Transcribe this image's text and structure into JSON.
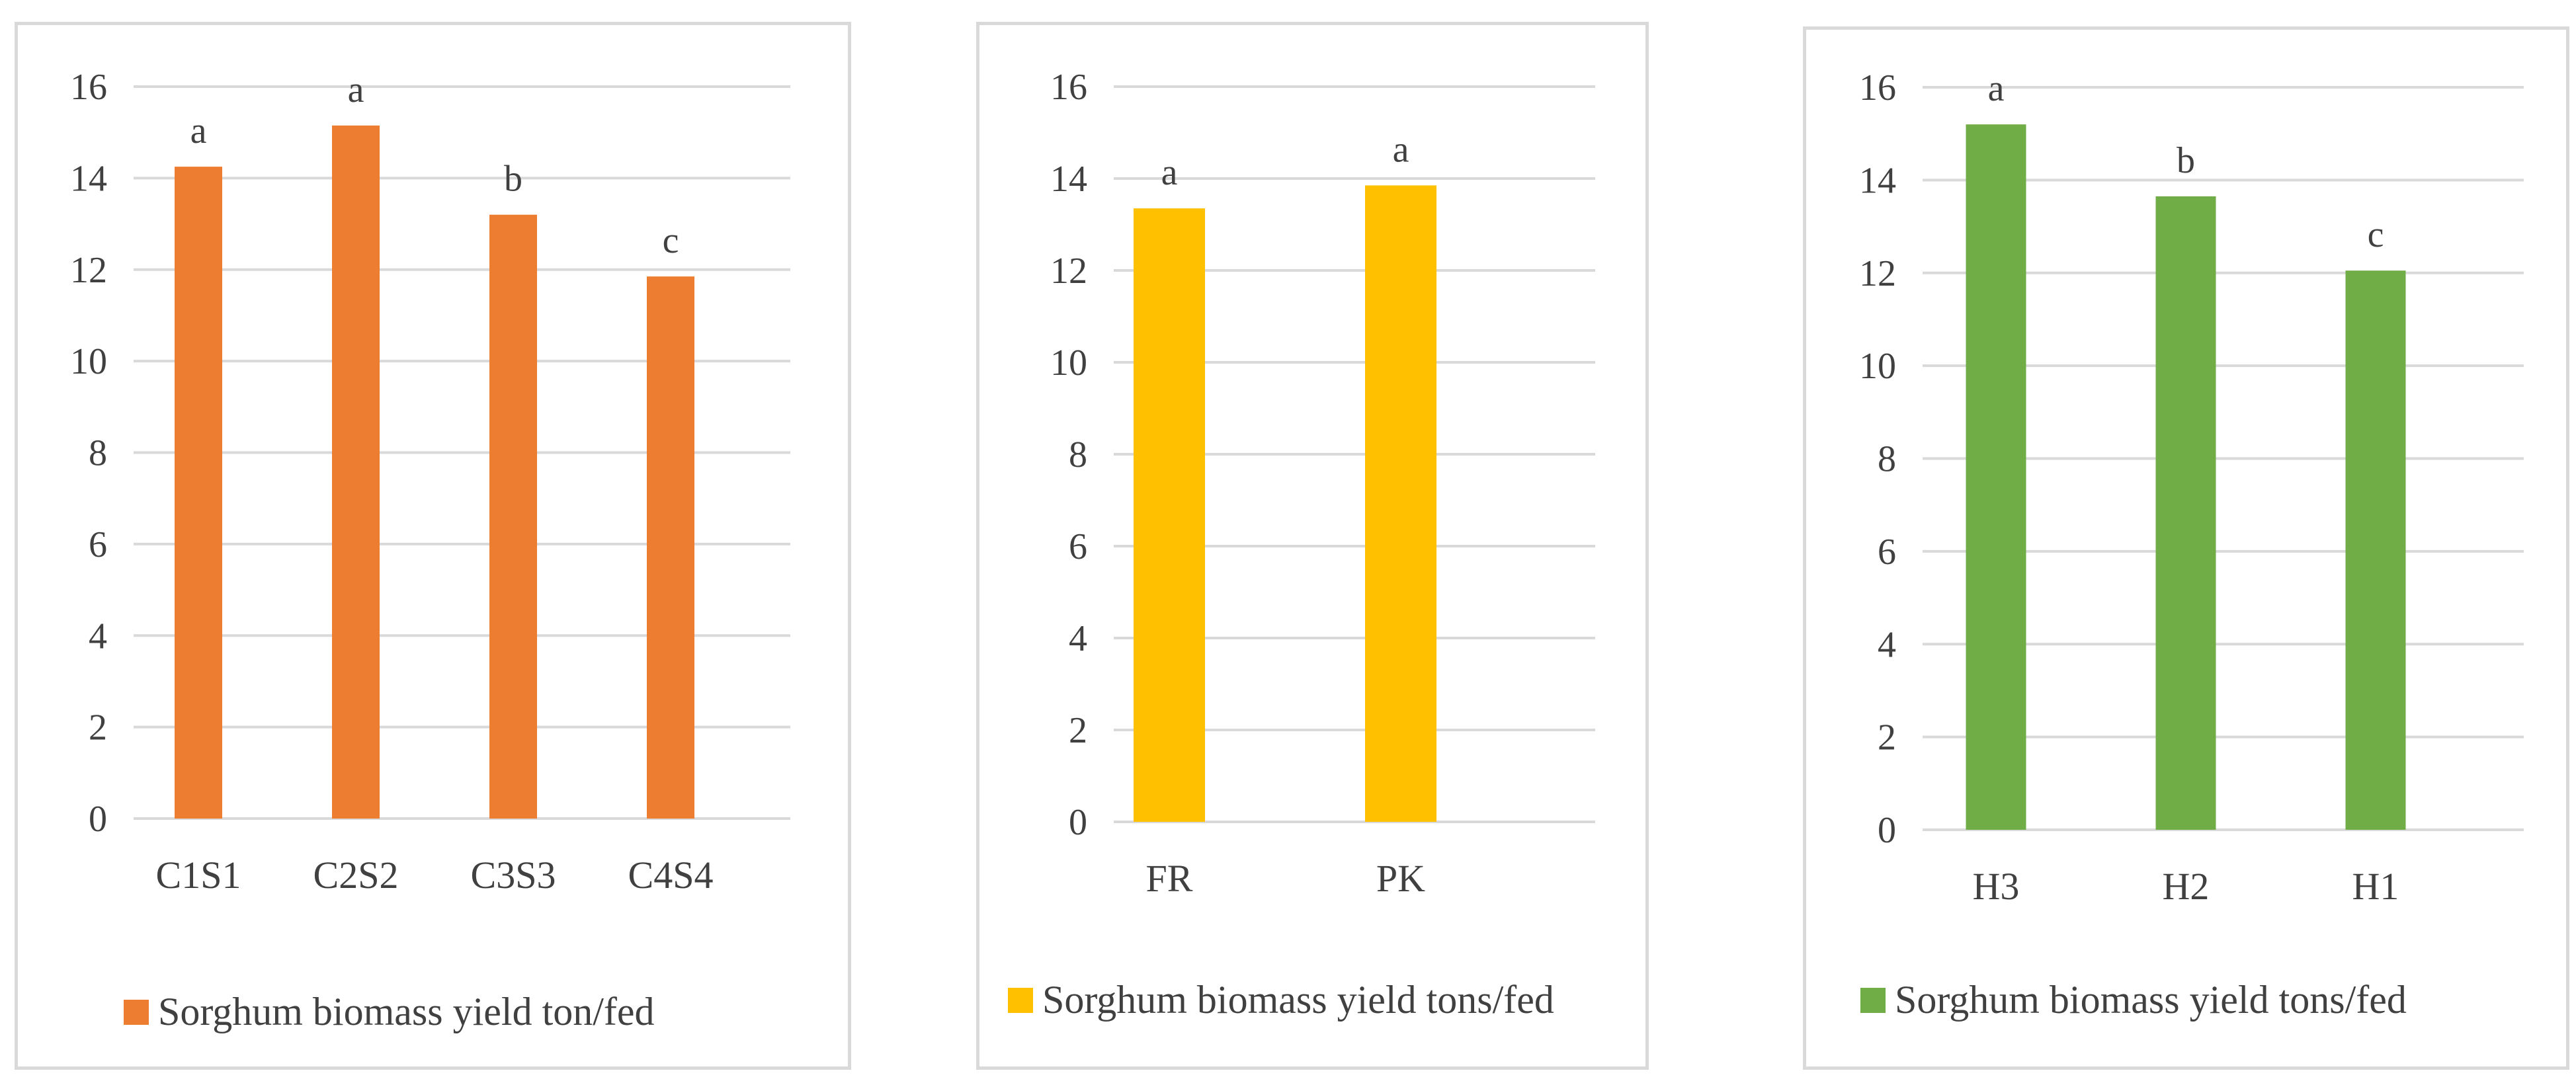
{
  "chart_data": [
    {
      "type": "bar",
      "categories": [
        "C1S1",
        "C2S2",
        "C3S3",
        "C4S4"
      ],
      "series": [
        {
          "name": "Sorghum biomass yield ton/fed",
          "values": [
            14.25,
            15.15,
            13.2,
            11.85
          ],
          "labels": [
            "a",
            "a",
            "b",
            "c"
          ],
          "color": "#ED7D31"
        }
      ],
      "ylim": [
        0,
        16
      ],
      "yticks": [
        "0",
        "2",
        "4",
        "6",
        "8",
        "10",
        "12",
        "14",
        "16"
      ],
      "grid": true,
      "legend": "bottom"
    },
    {
      "type": "bar",
      "categories": [
        "FR",
        "PK"
      ],
      "series": [
        {
          "name": "Sorghum biomass yield tons/fed",
          "values": [
            13.35,
            13.85
          ],
          "labels": [
            "a",
            "a"
          ],
          "color": "#FFC000"
        }
      ],
      "ylim": [
        0,
        16
      ],
      "yticks": [
        "0",
        "2",
        "4",
        "6",
        "8",
        "10",
        "12",
        "14",
        "16"
      ],
      "grid": true,
      "legend": "bottom"
    },
    {
      "type": "bar",
      "categories": [
        "H3",
        "H2",
        "H1"
      ],
      "series": [
        {
          "name": "Sorghum biomass yield tons/fed",
          "values": [
            15.2,
            13.65,
            12.05
          ],
          "labels": [
            "a",
            "b",
            "c"
          ],
          "color": "#70AD47"
        }
      ],
      "ylim": [
        0,
        16
      ],
      "yticks": [
        "0",
        "2",
        "4",
        "6",
        "8",
        "10",
        "12",
        "14",
        "16"
      ],
      "grid": true,
      "legend": "bottom"
    }
  ]
}
